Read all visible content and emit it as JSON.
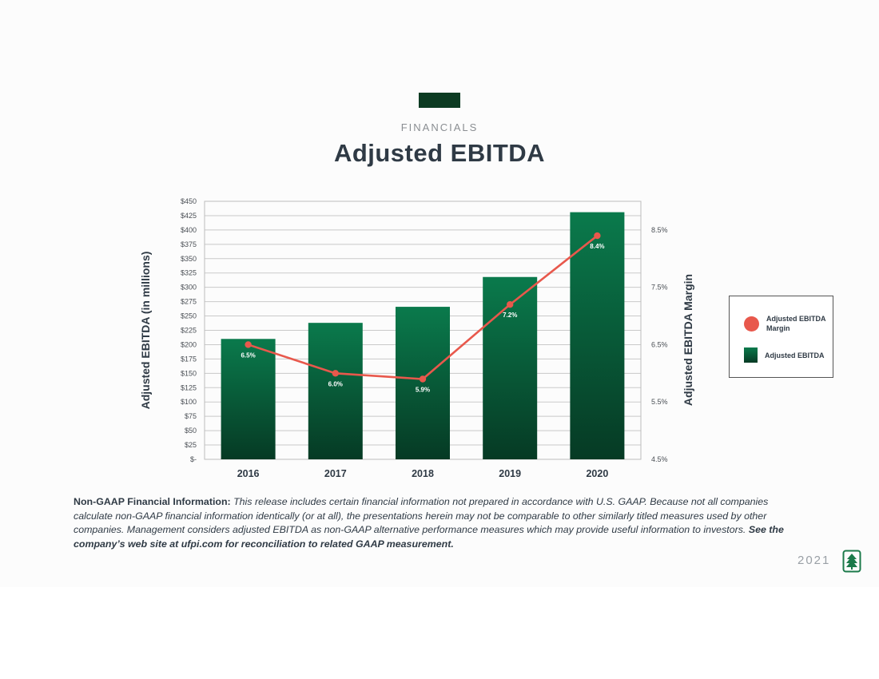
{
  "header": {
    "section_label": "FINANCIALS",
    "title": "Adjusted EBITDA"
  },
  "chart_data": {
    "type": "bar",
    "categories": [
      "2016",
      "2017",
      "2018",
      "2019",
      "2020"
    ],
    "series": [
      {
        "name": "Adjusted EBITDA",
        "type": "bar",
        "axis": "left",
        "values": [
          210,
          238,
          266,
          318,
          431
        ]
      },
      {
        "name": "Adjusted EBITDA Margin",
        "type": "line",
        "axis": "right",
        "values": [
          6.5,
          6.0,
          5.9,
          7.2,
          8.4
        ],
        "labels": [
          "6.5%",
          "6.0%",
          "5.9%",
          "7.2%",
          "8.4%"
        ]
      }
    ],
    "ylabel": "Adjusted EBITDA  (in millions)",
    "ylabel_right": "Adjusted EBITDA Margin",
    "ylim": [
      0,
      450
    ],
    "y_ticks": [
      "$-",
      "$25",
      "$50",
      "$75",
      "$100",
      "$125",
      "$150",
      "$175",
      "$200",
      "$225",
      "$250",
      "$275",
      "$300",
      "$325",
      "$350",
      "$375",
      "$400",
      "$425",
      "$450"
    ],
    "ylim_right": [
      4.5,
      9.0
    ],
    "y_ticks_right": [
      "4.5%",
      "5.5%",
      "6.5%",
      "7.5%",
      "8.5%"
    ],
    "grid": true,
    "legend": {
      "placement": "right",
      "entries": [
        "Adjusted EBITDA Margin",
        "Adjusted EBITDA"
      ]
    },
    "colors": {
      "bar_top": "#0a7a4c",
      "bar_bottom": "#063a24",
      "line": "#e8584c",
      "grid": "#c9c9c9"
    }
  },
  "footnote": {
    "lead": "Non-GAAP Financial Information:",
    "body": " This release includes certain financial information not prepared in accordance with U.S. GAAP. Because not all companies calculate non-GAAP financial information identically (or at all), the presentations herein may not be comparable to other similarly titled measures used by other companies. Management considers adjusted EBITDA as non-GAAP alternative performance measures which may provide useful information to investors. ",
    "tail": "See the company’s web site at ufpi.com for reconciliation to related GAAP measurement."
  },
  "footer": {
    "year": "2021",
    "logo_icon": "tree-logo-icon"
  }
}
